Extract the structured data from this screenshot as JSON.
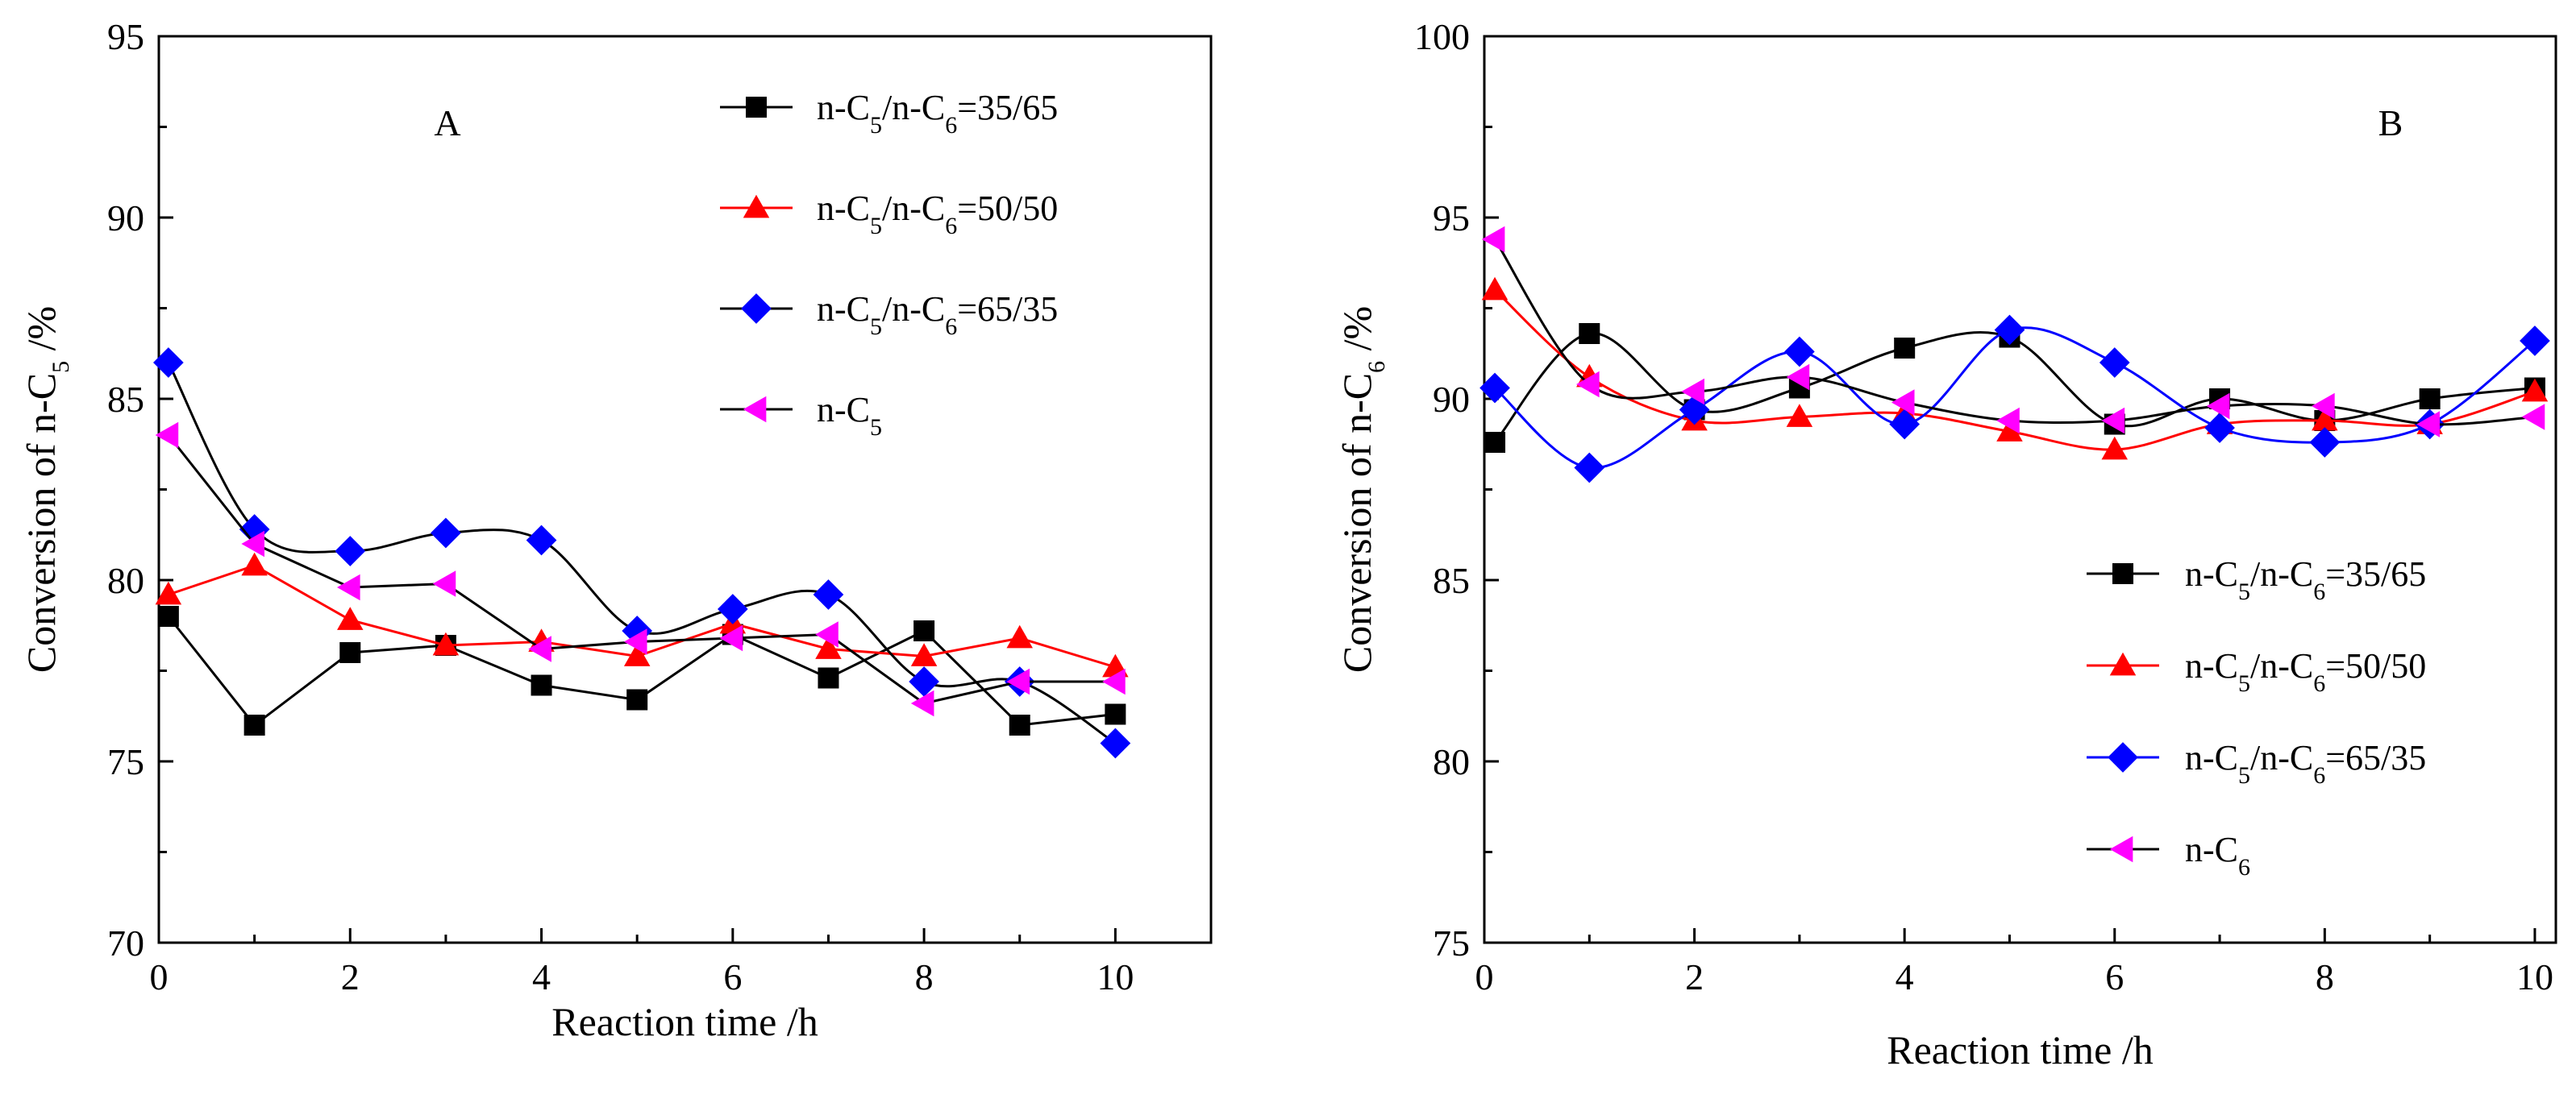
{
  "chart_data": [
    {
      "type": "line",
      "panel_label": "A",
      "xlabel": "Reaction time  /h",
      "ylabel_main": "Conversion of n-C",
      "ylabel_sub": "5",
      "ylabel_unit": "  /%",
      "xlim": [
        0,
        11
      ],
      "ylim": [
        70,
        95
      ],
      "xticks": [
        0,
        2,
        4,
        6,
        8,
        10
      ],
      "yticks": [
        70,
        75,
        80,
        85,
        90,
        95
      ],
      "grid": false,
      "legend_position": "top-right",
      "series": [
        {
          "name": "n-C5/n-C6=35/65",
          "legend": [
            "n-C",
            "5",
            "/n-C",
            "6",
            "=35/65"
          ],
          "marker": "square",
          "color": "#000000",
          "line_color": "#000000",
          "smooth": false,
          "x": [
            0.1,
            1,
            2,
            3,
            4,
            5,
            6,
            7,
            8,
            9,
            10
          ],
          "y": [
            79.0,
            76.0,
            78.0,
            78.2,
            77.1,
            76.7,
            78.5,
            77.3,
            78.6,
            76.0,
            76.3
          ]
        },
        {
          "name": "n-C5/n-C6=50/50",
          "legend": [
            "n-C",
            "5",
            "/n-C",
            "6",
            "=50/50"
          ],
          "marker": "triangle-up",
          "color": "#ff0000",
          "line_color": "#ff0000",
          "smooth": false,
          "x": [
            0.1,
            1,
            2,
            3,
            4,
            5,
            6,
            7,
            8,
            9,
            10
          ],
          "y": [
            79.6,
            80.4,
            78.9,
            78.2,
            78.3,
            77.9,
            78.8,
            78.1,
            77.9,
            78.4,
            77.6
          ]
        },
        {
          "name": "n-C5/n-C6=65/35",
          "legend": [
            "n-C",
            "5",
            "/n-C",
            "6",
            "=65/35"
          ],
          "marker": "diamond",
          "color": "#0000ff",
          "line_color": "#000000",
          "smooth": true,
          "x": [
            0.1,
            1,
            2,
            3,
            4,
            5,
            6,
            7,
            8,
            9,
            10
          ],
          "y": [
            86.0,
            81.4,
            80.8,
            81.3,
            81.1,
            78.6,
            79.2,
            79.6,
            77.2,
            77.2,
            75.5
          ]
        },
        {
          "name": "n-C5",
          "legend": [
            "n-C",
            "5",
            "",
            "",
            ""
          ],
          "marker": "triangle-left",
          "color": "#ff00ff",
          "line_color": "#000000",
          "smooth": false,
          "x": [
            0.1,
            1,
            2,
            3,
            4,
            5,
            6,
            7,
            8,
            9,
            10
          ],
          "y": [
            84.0,
            81.0,
            79.8,
            79.9,
            78.1,
            78.3,
            78.4,
            78.5,
            76.6,
            77.2,
            77.2
          ]
        }
      ]
    },
    {
      "type": "line",
      "panel_label": "B",
      "xlabel": "Reaction time  /h",
      "ylabel_main": "Conversion of n-C",
      "ylabel_sub": "6",
      "ylabel_unit": "  /%",
      "xlim": [
        0,
        10.2
      ],
      "ylim": [
        75,
        100
      ],
      "xticks": [
        0,
        2,
        4,
        6,
        8,
        10
      ],
      "yticks": [
        75,
        80,
        85,
        90,
        95,
        100
      ],
      "grid": false,
      "legend_position": "bottom-right",
      "series": [
        {
          "name": "n-C5/n-C6=35/65",
          "legend": [
            "n-C",
            "5",
            "/n-C",
            "6",
            "=35/65"
          ],
          "marker": "square",
          "color": "#000000",
          "line_color": "#000000",
          "smooth": true,
          "x": [
            0.1,
            1,
            2,
            3,
            4,
            5,
            6,
            7,
            8,
            9,
            10
          ],
          "y": [
            88.8,
            91.8,
            89.7,
            90.3,
            91.4,
            91.7,
            89.3,
            90.0,
            89.4,
            90.0,
            90.3
          ]
        },
        {
          "name": "n-C5/n-C6=50/50",
          "legend": [
            "n-C",
            "5",
            "/n-C",
            "6",
            "=50/50"
          ],
          "marker": "triangle-up",
          "color": "#ff0000",
          "line_color": "#ff0000",
          "smooth": true,
          "x": [
            0.1,
            1,
            2,
            3,
            4,
            5,
            6,
            7,
            8,
            9,
            10
          ],
          "y": [
            93.0,
            90.6,
            89.4,
            89.5,
            89.6,
            89.1,
            88.6,
            89.3,
            89.4,
            89.3,
            90.2
          ]
        },
        {
          "name": "n-C5/n-C6=65/35",
          "legend": [
            "n-C",
            "5",
            "/n-C",
            "6",
            "=65/35"
          ],
          "marker": "diamond",
          "color": "#0000ff",
          "line_color": "#0000ff",
          "smooth": true,
          "x": [
            0.1,
            1,
            2,
            3,
            4,
            5,
            6,
            7,
            8,
            9,
            10
          ],
          "y": [
            90.3,
            88.1,
            89.7,
            91.3,
            89.3,
            91.9,
            91.0,
            89.2,
            88.8,
            89.3,
            91.6
          ]
        },
        {
          "name": "n-C6",
          "legend": [
            "n-C",
            "6",
            "",
            "",
            ""
          ],
          "marker": "triangle-left",
          "color": "#ff00ff",
          "line_color": "#000000",
          "smooth": true,
          "x": [
            0.1,
            1,
            2,
            3,
            4,
            5,
            6,
            7,
            8,
            9,
            10
          ],
          "y": [
            94.4,
            90.4,
            90.2,
            90.6,
            89.9,
            89.4,
            89.4,
            89.8,
            89.8,
            89.3,
            89.5
          ]
        }
      ]
    }
  ]
}
